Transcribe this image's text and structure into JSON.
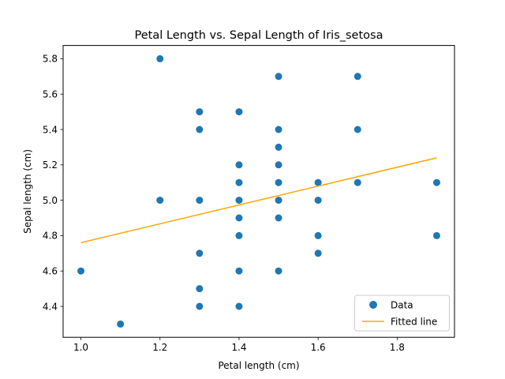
{
  "chart_data": {
    "type": "scatter",
    "title": "Petal Length vs. Sepal Length of Iris_setosa",
    "xlabel": "Petal length (cm)",
    "ylabel": "Sepal length (cm)",
    "xlim": [
      0.955,
      1.945
    ],
    "ylim": [
      4.225,
      5.875
    ],
    "xticks": [
      "1.0",
      "1.2",
      "1.4",
      "1.6",
      "1.8"
    ],
    "yticks": [
      "4.4",
      "4.6",
      "4.8",
      "5.0",
      "5.2",
      "5.4",
      "5.6",
      "5.8"
    ],
    "grid": false,
    "legend_position": "lower-right",
    "series": [
      {
        "name": "Data",
        "type": "scatter",
        "color": "#1f77b4",
        "points": [
          [
            1.0,
            4.6
          ],
          [
            1.1,
            4.3
          ],
          [
            1.2,
            5.8
          ],
          [
            1.2,
            5.0
          ],
          [
            1.3,
            5.5
          ],
          [
            1.3,
            5.4
          ],
          [
            1.3,
            5.0
          ],
          [
            1.3,
            4.7
          ],
          [
            1.3,
            4.5
          ],
          [
            1.3,
            4.4
          ],
          [
            1.4,
            5.5
          ],
          [
            1.4,
            5.2
          ],
          [
            1.4,
            5.1
          ],
          [
            1.4,
            5.0
          ],
          [
            1.4,
            4.9
          ],
          [
            1.4,
            4.8
          ],
          [
            1.4,
            4.6
          ],
          [
            1.4,
            4.4
          ],
          [
            1.5,
            5.7
          ],
          [
            1.5,
            5.4
          ],
          [
            1.5,
            5.3
          ],
          [
            1.5,
            5.2
          ],
          [
            1.5,
            5.1
          ],
          [
            1.5,
            5.0
          ],
          [
            1.5,
            4.9
          ],
          [
            1.5,
            4.6
          ],
          [
            1.6,
            5.1
          ],
          [
            1.6,
            5.0
          ],
          [
            1.6,
            4.8
          ],
          [
            1.6,
            4.7
          ],
          [
            1.7,
            5.7
          ],
          [
            1.7,
            5.4
          ],
          [
            1.7,
            5.1
          ],
          [
            1.9,
            5.1
          ],
          [
            1.9,
            4.8
          ]
        ]
      },
      {
        "name": "Fitted line",
        "type": "line",
        "color": "#ffa500",
        "points": [
          [
            1.0,
            4.76
          ],
          [
            1.9,
            5.24
          ]
        ]
      }
    ]
  }
}
